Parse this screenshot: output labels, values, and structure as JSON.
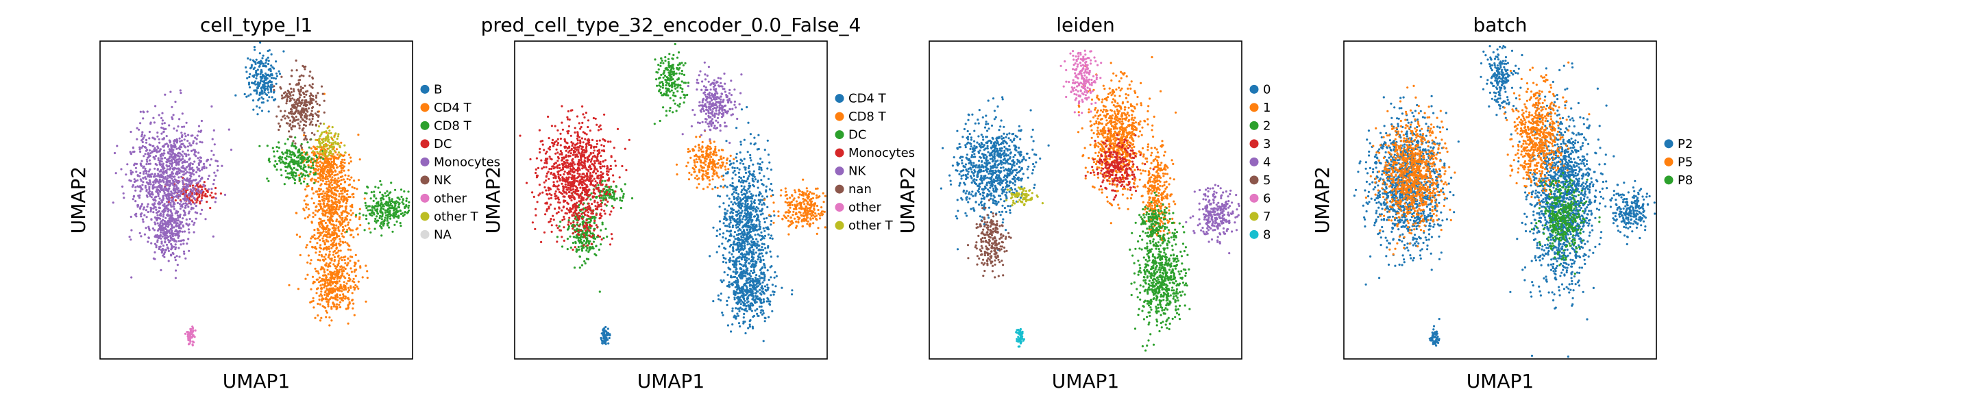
{
  "chart_data": [
    {
      "type": "scatter",
      "title": "cell_type_l1",
      "xlabel": "UMAP1",
      "ylabel": "UMAP2",
      "ticks_visible": false,
      "grid": false,
      "legend_placement": "right",
      "series": [
        {
          "name": "B",
          "color": "#1f77b4",
          "clusters": [
            [
              0.52,
              0.12,
              0.045,
              0.08
            ]
          ]
        },
        {
          "name": "CD4 T",
          "color": "#ff7f0e",
          "clusters": [
            [
              0.74,
              0.52,
              0.07,
              0.16
            ],
            [
              0.75,
              0.76,
              0.07,
              0.09
            ],
            [
              0.72,
              0.38,
              0.05,
              0.06
            ]
          ]
        },
        {
          "name": "CD8 T",
          "color": "#2ca02c",
          "clusters": [
            [
              0.62,
              0.38,
              0.06,
              0.06
            ],
            [
              0.92,
              0.53,
              0.07,
              0.06
            ]
          ]
        },
        {
          "name": "DC",
          "color": "#d62728",
          "clusters": [
            [
              0.3,
              0.48,
              0.06,
              0.03
            ]
          ]
        },
        {
          "name": "Monocytes",
          "color": "#9467bd",
          "clusters": [
            [
              0.22,
              0.43,
              0.11,
              0.16
            ],
            [
              0.22,
              0.6,
              0.05,
              0.08
            ]
          ]
        },
        {
          "name": "NK",
          "color": "#8c564b",
          "clusters": [
            [
              0.64,
              0.2,
              0.055,
              0.09
            ]
          ]
        },
        {
          "name": "other",
          "color": "#e377c2",
          "clusters": [
            [
              0.29,
              0.93,
              0.012,
              0.025
            ]
          ]
        },
        {
          "name": "other T",
          "color": "#bcbd22",
          "clusters": [
            [
              0.73,
              0.32,
              0.04,
              0.04
            ]
          ]
        },
        {
          "name": "NA",
          "color": "#d9d9d9",
          "clusters": []
        }
      ]
    },
    {
      "type": "scatter",
      "title": "pred_cell_type_32_encoder_0.0_False_4",
      "xlabel": "UMAP1",
      "ylabel": "UMAP2",
      "ticks_visible": false,
      "grid": false,
      "legend_placement": "right",
      "series": [
        {
          "name": "CD4 T",
          "color": "#1f77b4",
          "clusters": [
            [
              0.74,
              0.58,
              0.07,
              0.2
            ],
            [
              0.75,
              0.78,
              0.07,
              0.09
            ],
            [
              0.29,
              0.93,
              0.012,
              0.025
            ]
          ]
        },
        {
          "name": "CD8 T",
          "color": "#ff7f0e",
          "clusters": [
            [
              0.62,
              0.38,
              0.06,
              0.06
            ],
            [
              0.92,
              0.53,
              0.07,
              0.06
            ]
          ]
        },
        {
          "name": "DC",
          "color": "#2ca02c",
          "clusters": [
            [
              0.5,
              0.12,
              0.04,
              0.08
            ],
            [
              0.3,
              0.48,
              0.05,
              0.03
            ],
            [
              0.22,
              0.6,
              0.05,
              0.08
            ]
          ]
        },
        {
          "name": "Monocytes",
          "color": "#d62728",
          "clusters": [
            [
              0.2,
              0.43,
              0.1,
              0.16
            ]
          ]
        },
        {
          "name": "NK",
          "color": "#9467bd",
          "clusters": [
            [
              0.64,
              0.2,
              0.055,
              0.08
            ]
          ]
        },
        {
          "name": "nan",
          "color": "#8c564b",
          "clusters": []
        },
        {
          "name": "other",
          "color": "#e377c2",
          "clusters": []
        },
        {
          "name": "other T",
          "color": "#bcbd22",
          "clusters": []
        }
      ]
    },
    {
      "type": "scatter",
      "title": "leiden",
      "xlabel": "UMAP1",
      "ylabel": "UMAP2",
      "ticks_visible": false,
      "grid": false,
      "legend_placement": "right",
      "series": [
        {
          "name": "0",
          "color": "#1f77b4",
          "clusters": [
            [
              0.2,
              0.4,
              0.1,
              0.13
            ]
          ]
        },
        {
          "name": "1",
          "color": "#ff7f0e",
          "clusters": [
            [
              0.6,
              0.3,
              0.08,
              0.15
            ],
            [
              0.73,
              0.48,
              0.04,
              0.12
            ]
          ]
        },
        {
          "name": "2",
          "color": "#2ca02c",
          "clusters": [
            [
              0.74,
              0.74,
              0.07,
              0.14
            ],
            [
              0.72,
              0.57,
              0.04,
              0.05
            ]
          ]
        },
        {
          "name": "3",
          "color": "#d62728",
          "clusters": [
            [
              0.6,
              0.39,
              0.06,
              0.07
            ]
          ]
        },
        {
          "name": "4",
          "color": "#9467bd",
          "clusters": [
            [
              0.92,
              0.54,
              0.06,
              0.07
            ]
          ]
        },
        {
          "name": "5",
          "color": "#8c564b",
          "clusters": [
            [
              0.2,
              0.63,
              0.045,
              0.08
            ]
          ]
        },
        {
          "name": "6",
          "color": "#e377c2",
          "clusters": [
            [
              0.49,
              0.12,
              0.04,
              0.08
            ]
          ]
        },
        {
          "name": "7",
          "color": "#bcbd22",
          "clusters": [
            [
              0.29,
              0.49,
              0.04,
              0.03
            ]
          ]
        },
        {
          "name": "8",
          "color": "#17becf",
          "clusters": [
            [
              0.29,
              0.93,
              0.012,
              0.025
            ]
          ]
        }
      ]
    },
    {
      "type": "scatter",
      "title": "batch",
      "xlabel": "UMAP1",
      "ylabel": "UMAP2",
      "ticks_visible": false,
      "grid": false,
      "legend_placement": "right",
      "series": [
        {
          "name": "P2",
          "color": "#1f77b4",
          "clusters": [
            [
              0.2,
              0.45,
              0.1,
              0.18
            ],
            [
              0.7,
              0.5,
              0.09,
              0.25
            ],
            [
              0.92,
              0.53,
              0.06,
              0.06
            ],
            [
              0.5,
              0.12,
              0.04,
              0.08
            ],
            [
              0.29,
              0.93,
              0.012,
              0.025
            ]
          ]
        },
        {
          "name": "P5",
          "color": "#ff7f0e",
          "clusters": [
            [
              0.62,
              0.3,
              0.07,
              0.14
            ],
            [
              0.22,
              0.42,
              0.09,
              0.15
            ]
          ]
        },
        {
          "name": "P8",
          "color": "#2ca02c",
          "clusters": [
            [
              0.7,
              0.55,
              0.06,
              0.1
            ]
          ]
        }
      ]
    }
  ]
}
